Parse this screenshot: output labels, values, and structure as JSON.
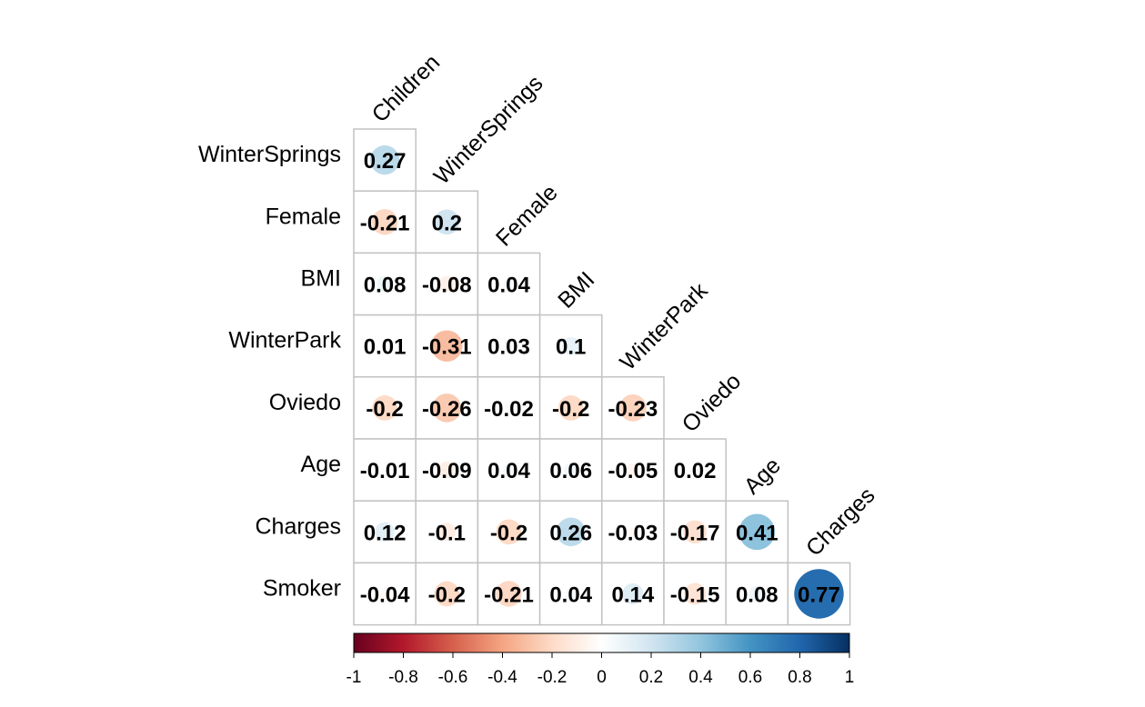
{
  "chart_data": {
    "type": "heatmap",
    "variables": [
      "Children",
      "WinterSprings",
      "Female",
      "BMI",
      "WinterPark",
      "Oviedo",
      "Age",
      "Charges",
      "Smoker"
    ],
    "row_labels": [
      "WinterSprings",
      "Female",
      "BMI",
      "WinterPark",
      "Oviedo",
      "Age",
      "Charges",
      "Smoker"
    ],
    "col_labels": [
      "Children",
      "WinterSprings",
      "Female",
      "BMI",
      "WinterPark",
      "Oviedo",
      "Age",
      "Charges"
    ],
    "values": [
      [
        "0.27"
      ],
      [
        "-0.21",
        "0.2"
      ],
      [
        "0.08",
        "-0.08",
        "0.04"
      ],
      [
        "0.01",
        "-0.31",
        "0.03",
        "0.1"
      ],
      [
        "-0.2",
        "-0.26",
        "-0.02",
        "-0.2",
        "-0.23"
      ],
      [
        "-0.01",
        "-0.09",
        "0.04",
        "0.06",
        "-0.05",
        "0.02"
      ],
      [
        "0.12",
        "-0.1",
        "-0.2",
        "0.26",
        "-0.03",
        "-0.17",
        "0.41"
      ],
      [
        "-0.04",
        "-0.2",
        "-0.21",
        "0.04",
        "0.14",
        "-0.15",
        "0.08",
        "0.77"
      ]
    ],
    "layout": "lower-triangle",
    "glyph": "circle",
    "colorbar": {
      "range": [
        -1,
        1
      ],
      "tick_labels": [
        "-1",
        "-0.8",
        "-0.6",
        "-0.4",
        "-0.2",
        "0",
        "0.2",
        "0.4",
        "0.6",
        "0.8",
        "1"
      ],
      "orientation": "horizontal",
      "palette": [
        "#67001F",
        "#B2182B",
        "#D6604D",
        "#F4A582",
        "#FDDBC7",
        "#FFFFFF",
        "#D1E5F0",
        "#92C5DE",
        "#4393C3",
        "#2166AC",
        "#053061"
      ]
    },
    "grid": true,
    "legend": "bottom"
  }
}
